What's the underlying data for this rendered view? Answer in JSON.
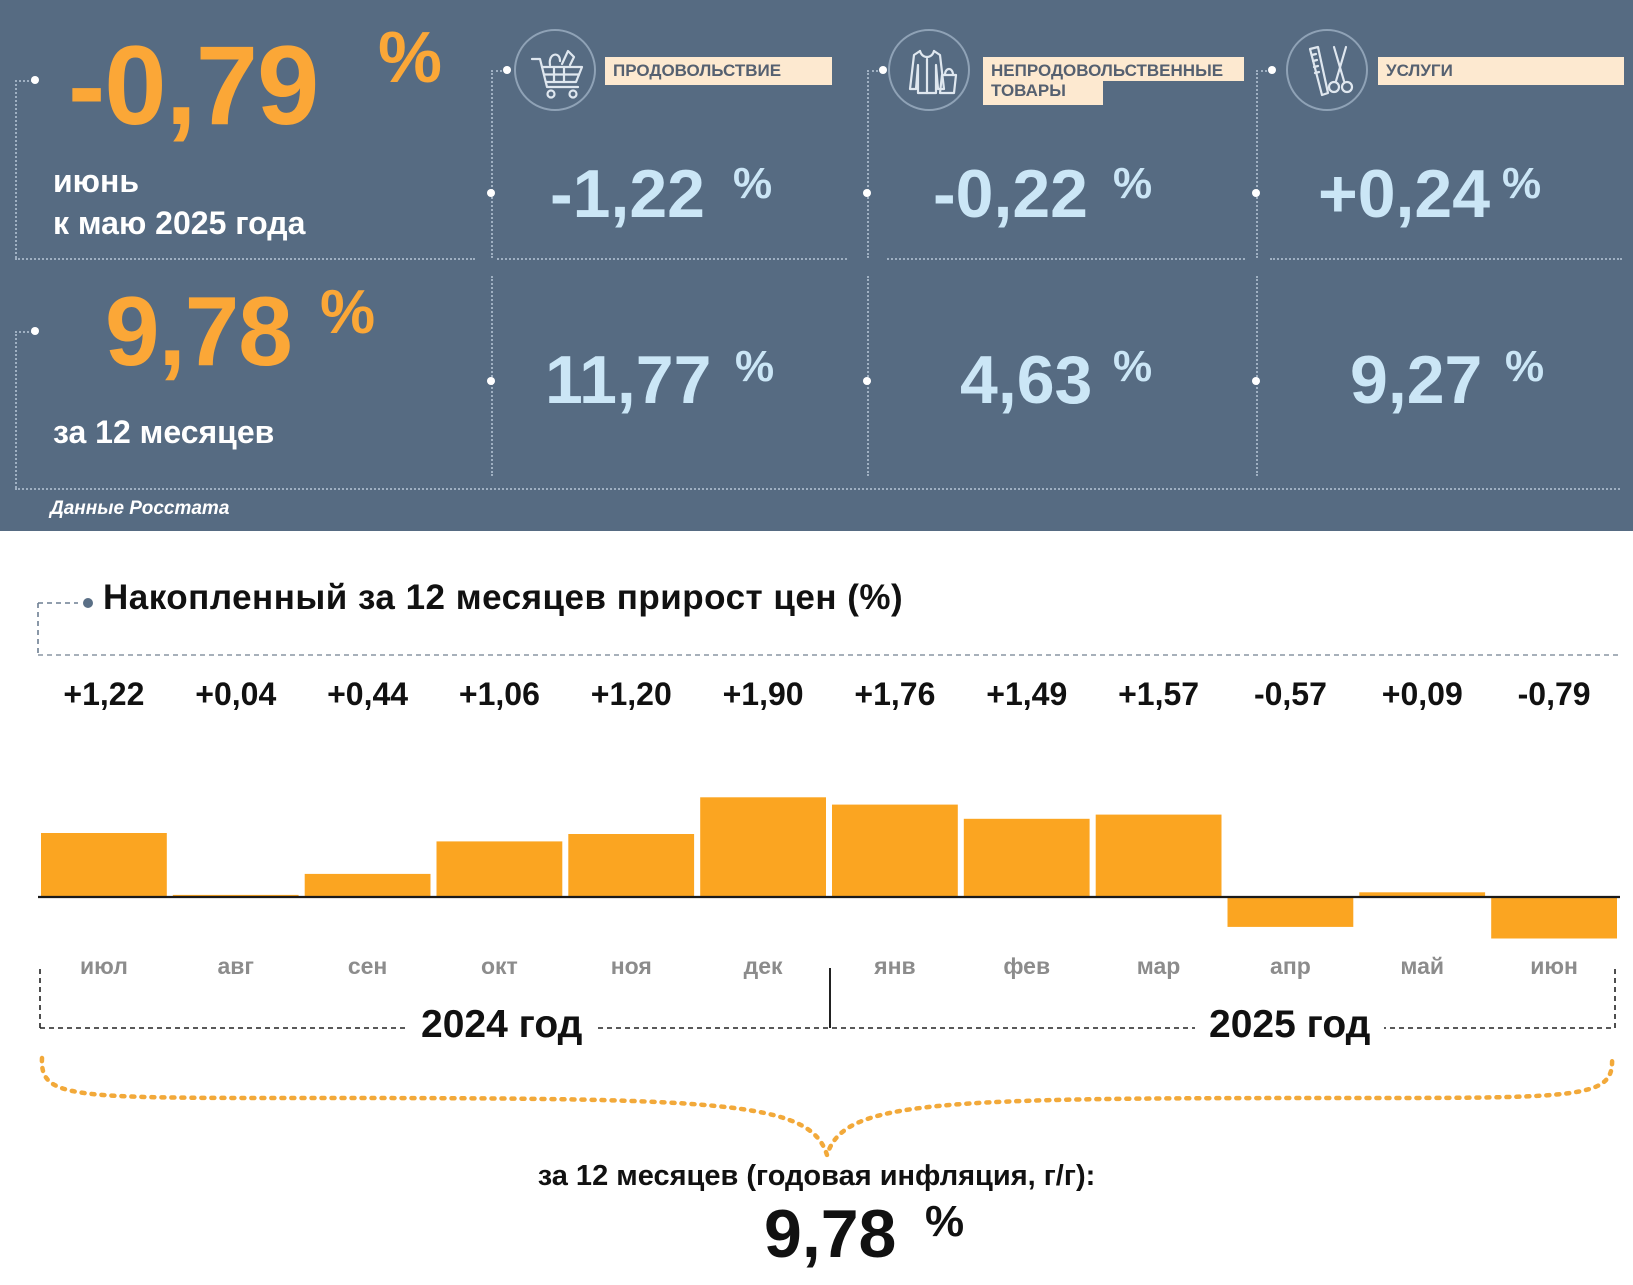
{
  "headline": {
    "month_change": "-0,79",
    "month_change_pct": "%",
    "month_caption_line1": "июнь",
    "month_caption_line2": "к маю 2025 года",
    "annual_change": "9,78",
    "annual_change_pct": "%",
    "annual_caption": "за 12 месяцев"
  },
  "categories": [
    {
      "label": "ПРОДОВОЛЬСТВИЕ",
      "icon": "shopping-cart-icon",
      "monthly": "-1,22",
      "annual": "11,77",
      "pct": "%"
    },
    {
      "label_line1": "НЕПРОДОВОЛЬСТВЕННЫЕ",
      "label_line2": "ТОВАРЫ",
      "icon": "clothing-bag-icon",
      "monthly": "-0,22",
      "annual": "4,63",
      "pct": "%"
    },
    {
      "label": "УСЛУГИ",
      "icon": "comb-scissors-icon",
      "monthly": "+0,24",
      "annual": "9,27",
      "pct": "%"
    }
  ],
  "source": "Данные Росстата",
  "colors": {
    "panel_bg": "#566b82",
    "orange": "#fba737",
    "light_blue": "#cbe6f6",
    "label_bg": "#fde9d0",
    "bar": "#fba521"
  },
  "chart_data": {
    "type": "bar",
    "title": "Накопленный за 12 месяцев прирост цен (%)",
    "categories": [
      "июл",
      "авг",
      "сен",
      "окт",
      "ноя",
      "дек",
      "янв",
      "фев",
      "мар",
      "апр",
      "май",
      "июн"
    ],
    "values": [
      1.22,
      0.04,
      0.44,
      1.06,
      1.2,
      1.9,
      1.76,
      1.49,
      1.57,
      -0.57,
      0.09,
      -0.79
    ],
    "value_labels": [
      "+1,22",
      "+0,04",
      "+0,44",
      "+1,06",
      "+1,20",
      "+1,90",
      "+1,76",
      "+1,49",
      "+1,57",
      "-0,57",
      "+0,09",
      "-0,79"
    ],
    "year_groups": [
      {
        "label": "2024 год",
        "from": 0,
        "to": 5
      },
      {
        "label": "2025 год",
        "from": 6,
        "to": 11
      }
    ],
    "summary_caption": "за 12 месяцев (годовая инфляция, г/г):",
    "summary_value": "9,78",
    "summary_pct": "%"
  }
}
